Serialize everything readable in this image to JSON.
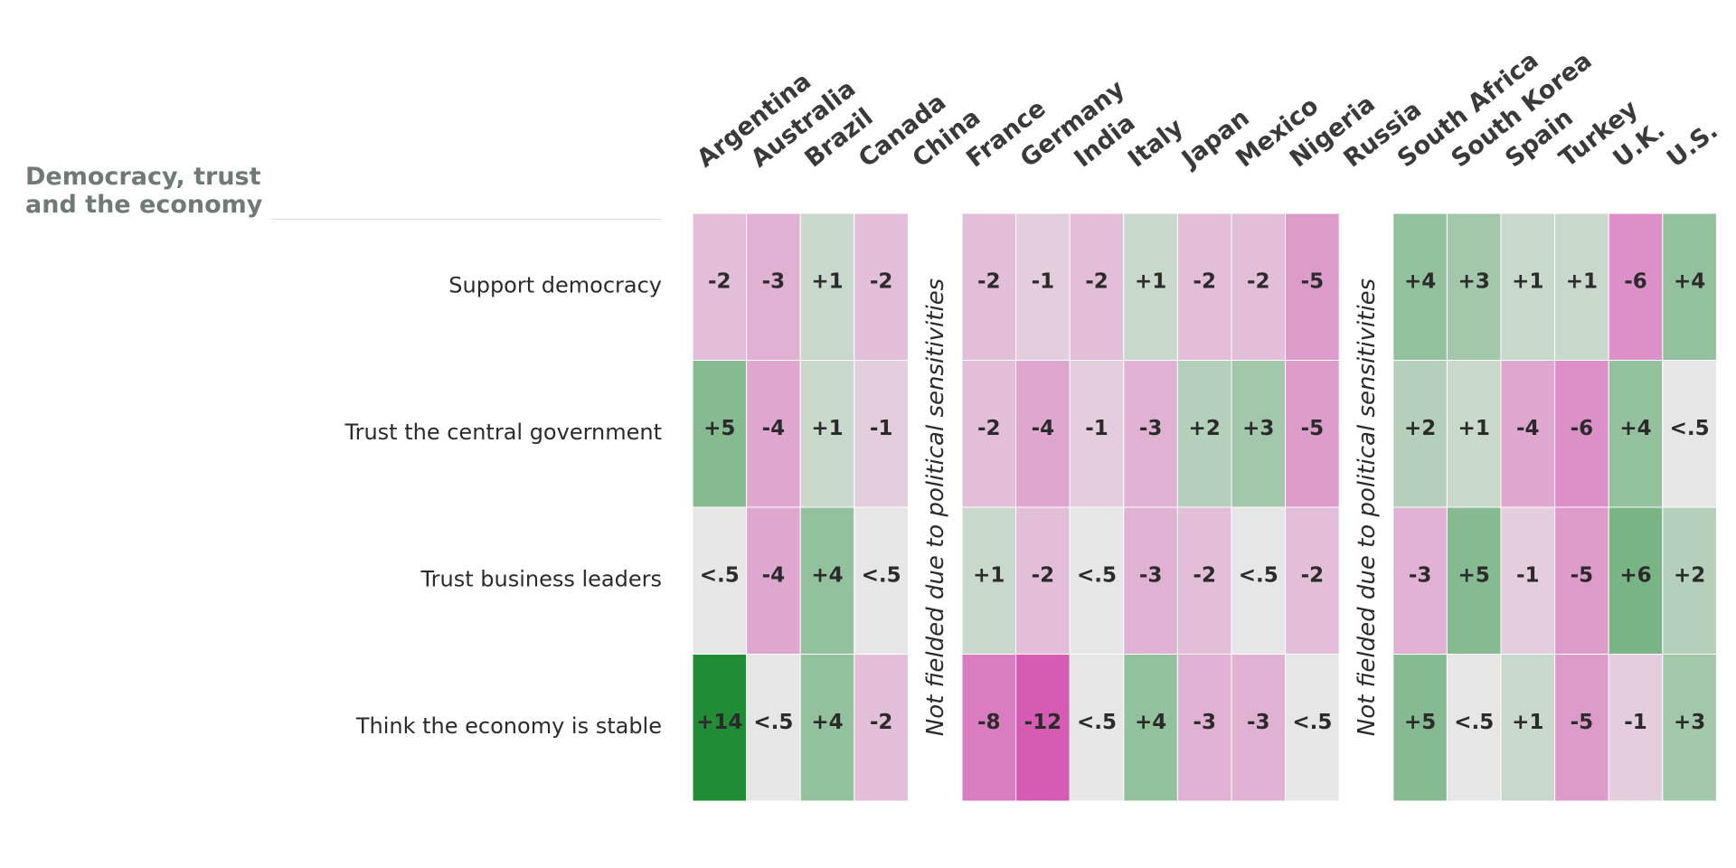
{
  "title": "Democracy, trust and the economy",
  "not_fielded_note": "Not fielded due to political sensitivities",
  "chart_data": {
    "type": "heatmap",
    "title": "Democracy, trust and the economy",
    "columns": [
      "Argentina",
      "Australia",
      "Brazil",
      "Canada",
      "China",
      "France",
      "Germany",
      "India",
      "Italy",
      "Japan",
      "Mexico",
      "Nigeria",
      "Russia",
      "South Africa",
      "South Korea",
      "Spain",
      "Turkey",
      "U.K.",
      "U.S."
    ],
    "not_fielded": [
      "China",
      "Russia"
    ],
    "rows": [
      {
        "label": "Support democracy",
        "cells": [
          "-2",
          "-3",
          "+1",
          "-2",
          null,
          "-2",
          "-1",
          "-2",
          "+1",
          "-2",
          "-2",
          "-5",
          null,
          "+4",
          "+3",
          "+1",
          "+1",
          "-6",
          "+4"
        ],
        "values": [
          -2,
          -3,
          1,
          -2,
          null,
          -2,
          -1,
          -2,
          1,
          -2,
          -2,
          -5,
          null,
          4,
          3,
          1,
          1,
          -6,
          4
        ]
      },
      {
        "label": "Trust the central government",
        "cells": [
          "+5",
          "-4",
          "+1",
          "-1",
          null,
          "-2",
          "-4",
          "-1",
          "-3",
          "+2",
          "+3",
          "-5",
          null,
          "+2",
          "+1",
          "-4",
          "-6",
          "+4",
          "<.5"
        ],
        "values": [
          5,
          -4,
          1,
          -1,
          null,
          -2,
          -4,
          -1,
          -3,
          2,
          3,
          -5,
          null,
          2,
          1,
          -4,
          -6,
          4,
          0
        ]
      },
      {
        "label": "Trust business leaders",
        "cells": [
          "<.5",
          "-4",
          "+4",
          "<.5",
          null,
          "+1",
          "-2",
          "<.5",
          "-3",
          "-2",
          "<.5",
          "-2",
          null,
          "-3",
          "+5",
          "-1",
          "-5",
          "+6",
          "+2"
        ],
        "values": [
          0,
          -4,
          4,
          0,
          null,
          1,
          -2,
          0,
          -3,
          -2,
          0,
          -2,
          null,
          -3,
          5,
          -1,
          -5,
          6,
          2
        ]
      },
      {
        "label": "Think the economy is stable",
        "cells": [
          "+14",
          "<.5",
          "+4",
          "-2",
          null,
          "-8",
          "-12",
          "<.5",
          "+4",
          "-3",
          "-3",
          "<.5",
          null,
          "+5",
          "<.5",
          "+1",
          "-5",
          "-1",
          "+3"
        ],
        "values": [
          14,
          0,
          4,
          -2,
          null,
          -8,
          -12,
          0,
          4,
          -3,
          -3,
          0,
          null,
          5,
          0,
          1,
          -5,
          -1,
          3
        ]
      }
    ],
    "colors": {
      "positive_max": "#208c36",
      "negative_max": "#d55bb3",
      "neutral": "#e7e6e7",
      "gap": "#ffffff",
      "text": "#2b2b2b"
    }
  }
}
